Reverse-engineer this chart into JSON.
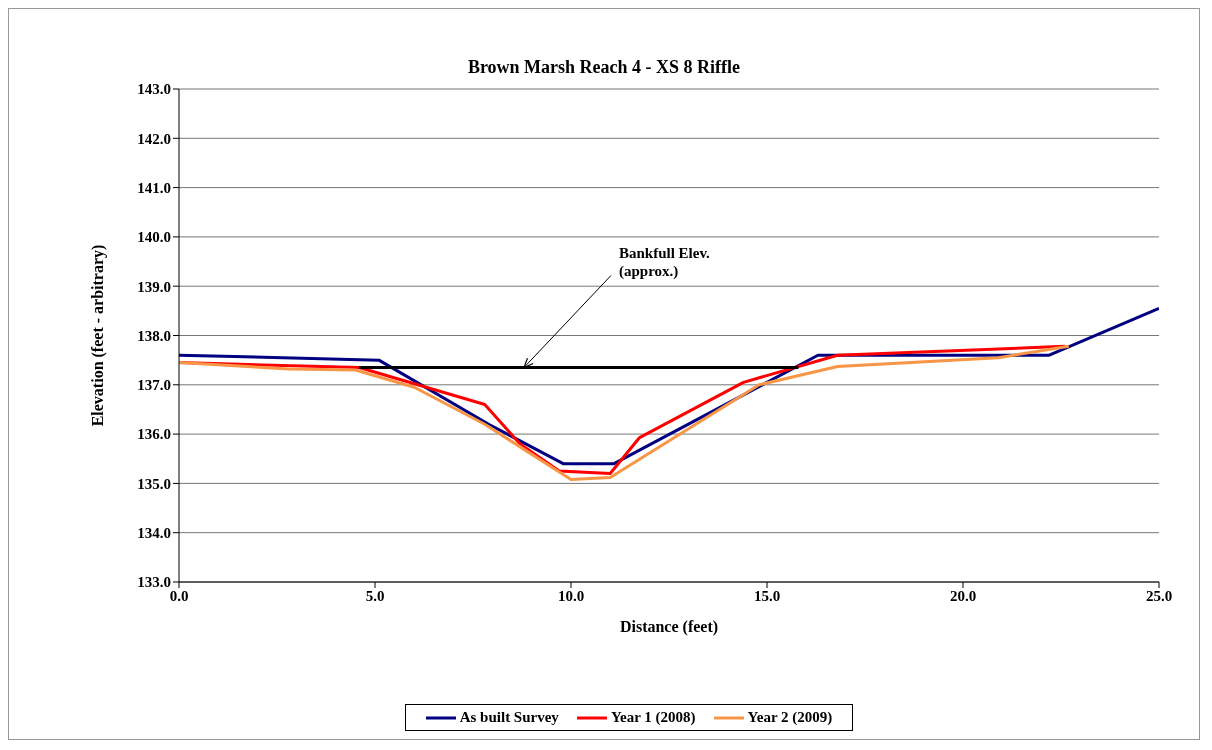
{
  "chart_data": {
    "type": "line",
    "title": "Brown Marsh Reach 4 - XS 8 Riffle",
    "xlabel": "Distance (feet)",
    "ylabel": "Elevation (feet - arbitrary)",
    "xlim": [
      0,
      25
    ],
    "xticks": [
      {
        "value": 0,
        "label": "0.0"
      },
      {
        "value": 5,
        "label": "5.0"
      },
      {
        "value": 10,
        "label": "10.0"
      },
      {
        "value": 15,
        "label": "15.0"
      },
      {
        "value": 20,
        "label": "20.0"
      },
      {
        "value": 25,
        "label": "25.0"
      }
    ],
    "ylim": [
      133,
      143
    ],
    "yticks": [
      {
        "value": 133,
        "label": "133.0"
      },
      {
        "value": 134,
        "label": "134.0"
      },
      {
        "value": 135,
        "label": "135.0"
      },
      {
        "value": 136,
        "label": "136.0"
      },
      {
        "value": 137,
        "label": "137.0"
      },
      {
        "value": 138,
        "label": "138.0"
      },
      {
        "value": 139,
        "label": "139.0"
      },
      {
        "value": 140,
        "label": "140.0"
      },
      {
        "value": 141,
        "label": "141.0"
      },
      {
        "value": 142,
        "label": "142.0"
      },
      {
        "value": 143,
        "label": "143.0"
      }
    ],
    "grid": "y",
    "legend": "bottom",
    "marker": "none",
    "line_style": "solid",
    "series": [
      {
        "name": "As built Survey",
        "color": "#000080",
        "x": [
          0,
          5.1,
          7.9,
          9.8,
          11.1,
          16.3,
          22.2,
          25
        ],
        "values": [
          137.6,
          137.5,
          136.2,
          135.4,
          135.4,
          137.6,
          137.6,
          138.55
        ]
      },
      {
        "name": "Year 1 (2008)",
        "color": "#ff0000",
        "x": [
          0,
          4.6,
          7.8,
          8.7,
          9.7,
          11.0,
          11.75,
          14.4,
          16.8,
          22.6
        ],
        "values": [
          137.45,
          137.35,
          136.6,
          135.8,
          135.25,
          135.2,
          135.93,
          137.05,
          137.6,
          137.78
        ]
      },
      {
        "name": "Year 2 (2009)",
        "color": "#f79646",
        "x": [
          0,
          2.8,
          4.5,
          6.0,
          7.8,
          10.0,
          11.0,
          14.8,
          16.8,
          20.9,
          22.7
        ],
        "values": [
          137.45,
          137.32,
          137.3,
          136.95,
          136.2,
          135.08,
          135.12,
          137.0,
          137.37,
          137.55,
          137.78
        ]
      },
      {
        "color": "#000000",
        "x": [
          4.6,
          15.8
        ],
        "values": [
          137.35,
          137.35
        ]
      }
    ],
    "annotations": [
      {
        "text": "Bankfull Elev.\n(approx.)",
        "x": 8.8,
        "y": 137.35
      }
    ]
  }
}
